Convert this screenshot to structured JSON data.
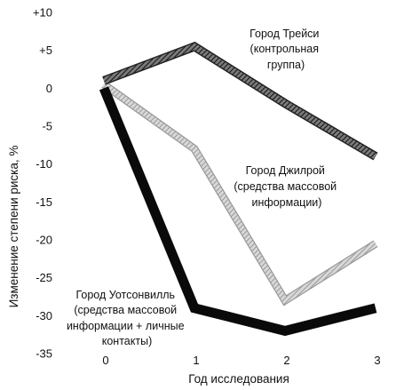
{
  "chart_data": {
    "type": "line",
    "title": "",
    "xlabel": "Год исследования",
    "ylabel": "Изменение степени риска, %",
    "x": [
      0,
      1,
      2,
      3
    ],
    "xlim": [
      0,
      3
    ],
    "ylim": [
      -35,
      10
    ],
    "x_ticks": [
      "0",
      "1",
      "2",
      "3"
    ],
    "y_ticks": [
      "+10",
      "+5",
      "0",
      "-5",
      "-10",
      "-15",
      "-20",
      "-25",
      "-30",
      "-35"
    ],
    "grid": false,
    "legend": "none",
    "series": [
      {
        "name": "Город Трейси (контрольная группа)",
        "label_lines": [
          "Город Трейси",
          "(контрольная",
          "группа)"
        ],
        "values": [
          1,
          5.5,
          -2,
          -9
        ],
        "style": "dark-hatched",
        "color": "#555555"
      },
      {
        "name": "Город Джилрой (средства массовой информации)",
        "label_lines": [
          "Город Джилрой",
          "(средства массовой",
          "информации)"
        ],
        "values": [
          0.5,
          -8,
          -28,
          -20.5
        ],
        "style": "light-hatched",
        "color": "#bbbbbb"
      },
      {
        "name": "Город Уотсонвилль (средства массовой информации + личные контакты)",
        "label_lines": [
          "Город Уотсонвилль",
          "(средства массовой",
          "информации + личные",
          "контакты)"
        ],
        "values": [
          0,
          -29,
          -32,
          -29
        ],
        "style": "solid",
        "color": "#0a0a0a"
      }
    ]
  }
}
